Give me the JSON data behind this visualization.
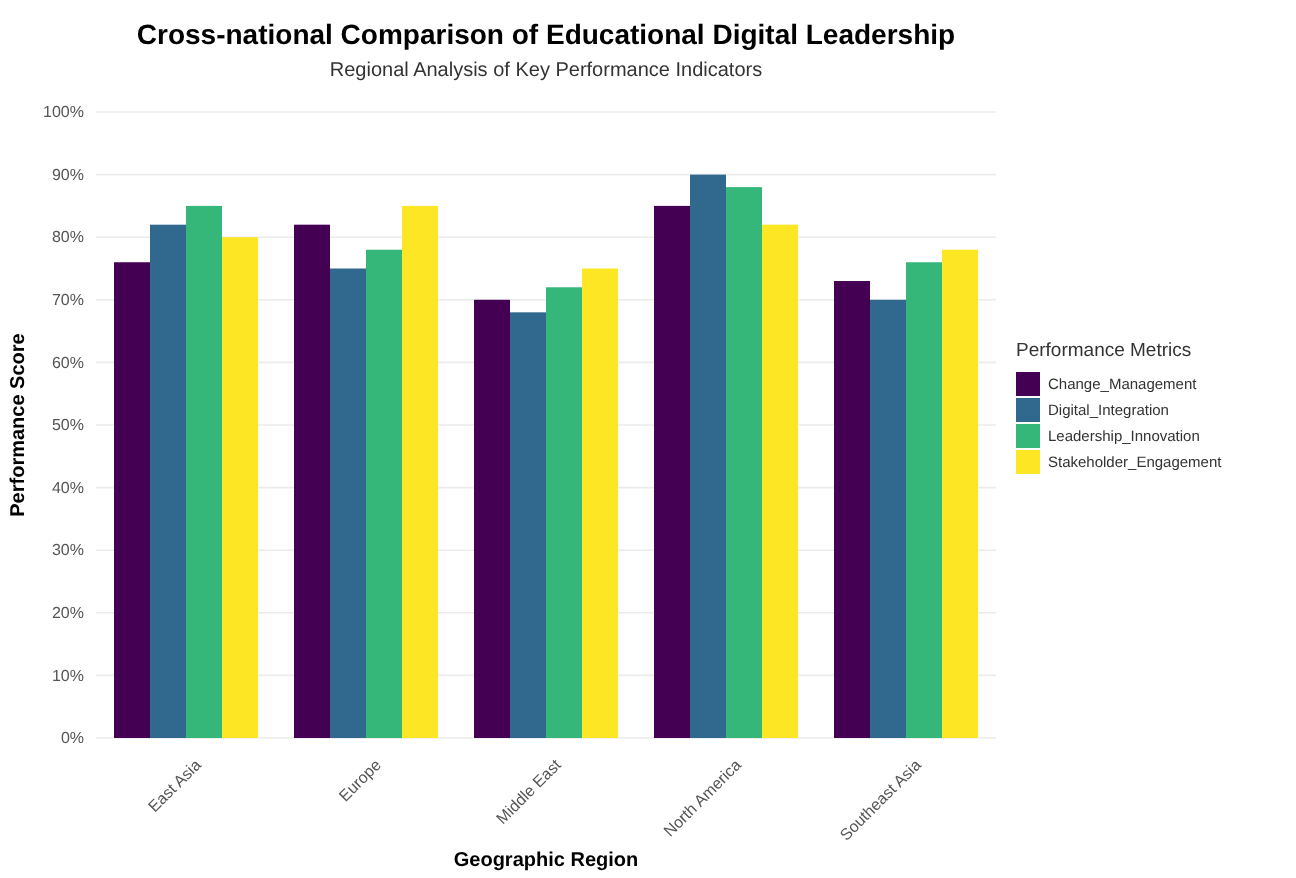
{
  "chart_data": {
    "type": "bar",
    "title": "Cross-national Comparison of Educational Digital Leadership",
    "subtitle": "Regional Analysis of Key Performance Indicators",
    "xlabel": "Geographic Region",
    "ylabel": "Performance Score",
    "legend_title": "Performance Metrics",
    "categories": [
      "East Asia",
      "Europe",
      "Middle East",
      "North America",
      "Southeast Asia"
    ],
    "series": [
      {
        "name": "Change_Management",
        "color": "#440154",
        "values": [
          76,
          82,
          70,
          85,
          73
        ]
      },
      {
        "name": "Digital_Integration",
        "color": "#31688e",
        "values": [
          82,
          75,
          68,
          90,
          70
        ]
      },
      {
        "name": "Leadership_Innovation",
        "color": "#35b779",
        "values": [
          85,
          78,
          72,
          88,
          76
        ]
      },
      {
        "name": "Stakeholder_Engagement",
        "color": "#fde725",
        "values": [
          80,
          85,
          75,
          82,
          78
        ]
      }
    ],
    "ylim": [
      0,
      100
    ],
    "yticks": [
      {
        "value": 0,
        "label": "0%"
      },
      {
        "value": 10,
        "label": "10%"
      },
      {
        "value": 20,
        "label": "20%"
      },
      {
        "value": 30,
        "label": "30%"
      },
      {
        "value": 40,
        "label": "40%"
      },
      {
        "value": 50,
        "label": "50%"
      },
      {
        "value": 60,
        "label": "60%"
      },
      {
        "value": 70,
        "label": "70%"
      },
      {
        "value": 80,
        "label": "80%"
      },
      {
        "value": 90,
        "label": "90%"
      },
      {
        "value": 100,
        "label": "100%"
      }
    ],
    "grid": "y",
    "legend": "right"
  }
}
